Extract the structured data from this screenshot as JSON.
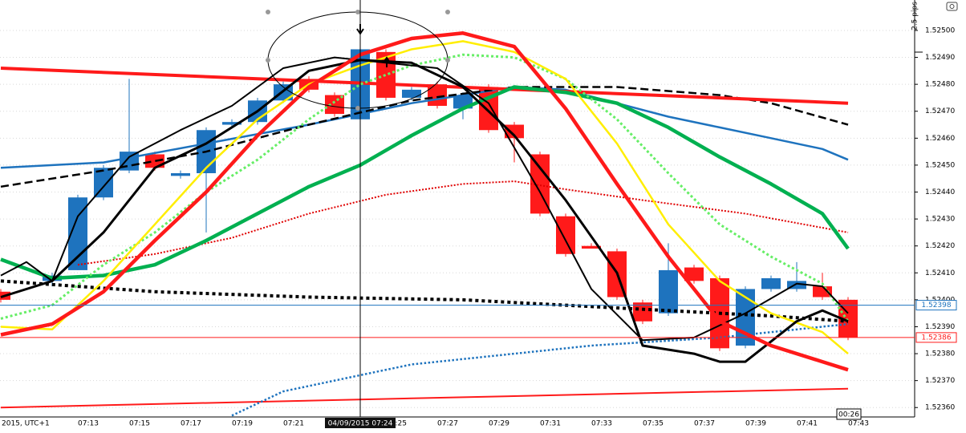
{
  "chart_data": {
    "type": "candlestick",
    "x_start_label": "2015, UTC+1",
    "categories": [
      null,
      null,
      null,
      "07:13",
      null,
      "07:15",
      null,
      "07:17",
      null,
      "07:19",
      null,
      "07:21",
      null,
      null,
      null,
      "07:25",
      null,
      "07:27",
      null,
      "07:29",
      null,
      "07:31",
      null,
      "07:33",
      null,
      "07:35",
      null,
      "07:37",
      null,
      "07:39",
      null,
      "07:41",
      null,
      "07:43"
    ],
    "open": [
      1.52403,
      null,
      1.52407,
      1.52411,
      1.52438,
      1.52448,
      1.52454,
      1.52446,
      1.52447,
      1.52465,
      1.52466,
      1.52474,
      1.52482,
      1.52476,
      1.52467,
      1.52492,
      1.52475,
      1.5248,
      1.52471,
      1.52479,
      1.52465,
      1.52454,
      1.52431,
      1.5242,
      1.52418,
      1.52399,
      1.52395,
      1.52412,
      1.52408,
      1.52383,
      1.52404,
      1.52404,
      1.52405,
      1.524
    ],
    "high": [
      1.52404,
      null,
      1.5241,
      1.52439,
      1.5245,
      1.52482,
      1.52455,
      1.52448,
      1.52464,
      1.52467,
      1.52475,
      1.52481,
      1.52483,
      1.52477,
      1.52494,
      1.52493,
      1.52479,
      1.52481,
      1.52477,
      1.5248,
      1.52466,
      1.52455,
      1.52432,
      1.52421,
      1.52419,
      1.524,
      1.52421,
      1.52413,
      1.52409,
      1.52405,
      1.52409,
      1.52414,
      1.5241,
      1.52401
    ],
    "low": [
      1.52399,
      null,
      1.52405,
      1.52411,
      1.52437,
      1.52447,
      1.52448,
      1.52445,
      1.52425,
      1.52464,
      1.52465,
      1.52473,
      1.52477,
      1.52468,
      1.52466,
      1.52474,
      1.52474,
      1.52471,
      1.52467,
      1.52462,
      1.52451,
      1.52431,
      1.52416,
      1.52419,
      1.524,
      1.52391,
      1.52394,
      1.52406,
      1.52381,
      1.52382,
      1.52403,
      1.52403,
      1.524,
      1.52385
    ],
    "close": [
      1.524,
      null,
      1.52409,
      1.52438,
      1.52449,
      1.52455,
      1.52449,
      1.52447,
      1.52463,
      1.52466,
      1.52474,
      1.5248,
      1.52478,
      1.52469,
      1.52493,
      1.52475,
      1.52478,
      1.52472,
      1.52476,
      1.52463,
      1.5246,
      1.52432,
      1.52417,
      1.52419,
      1.52401,
      1.52392,
      1.52411,
      1.52407,
      1.52382,
      1.52404,
      1.52408,
      1.52407,
      1.52401,
      1.52386
    ],
    "up_color": "#1e73be",
    "down_color": "#ff1a1a",
    "ylim": [
      1.523565,
      1.525113
    ],
    "yticks": [
      {
        "value": 1.525,
        "label": "1.52500"
      },
      {
        "value": 1.5249,
        "label": "1.52490"
      },
      {
        "value": 1.5248,
        "label": "1.52480"
      },
      {
        "value": 1.5247,
        "label": "1.52470"
      },
      {
        "value": 1.5246,
        "label": "1.52460"
      },
      {
        "value": 1.5245,
        "label": "1.52450"
      },
      {
        "value": 1.5244,
        "label": "1.52440"
      },
      {
        "value": 1.5243,
        "label": "1.52430"
      },
      {
        "value": 1.5242,
        "label": "1.52420"
      },
      {
        "value": 1.5241,
        "label": "1.52410"
      },
      {
        "value": 1.524,
        "label": "1.52400"
      },
      {
        "value": 1.5239,
        "label": "1.52390"
      },
      {
        "value": 1.5238,
        "label": "1.52380"
      },
      {
        "value": 1.5237,
        "label": "1.52370"
      },
      {
        "value": 1.5236,
        "label": "1.52360"
      }
    ],
    "grid": true,
    "overlays": [
      {
        "color": "#ff1a1a",
        "width": 2,
        "dash": "solid",
        "x": [
          0,
          33
        ],
        "values": [
          1.5236,
          1.52367
        ]
      },
      {
        "color": "#1e73be",
        "width": 2.5,
        "dash": "dotted",
        "x": [
          9,
          11,
          14,
          16,
          20,
          23,
          28,
          33
        ],
        "values": [
          1.52357,
          1.52366,
          1.52372,
          1.52376,
          1.5238,
          1.52383,
          1.52386,
          1.52391
        ]
      },
      {
        "color": "#000000",
        "width": 4,
        "dash": "dotted",
        "x": [
          0,
          6,
          12,
          18,
          24,
          30,
          33
        ],
        "values": [
          1.52407,
          1.52403,
          1.52401,
          1.524,
          1.52397,
          1.52394,
          1.52392
        ]
      },
      {
        "color": "#e00000",
        "width": 2,
        "dash": "dotted",
        "x": [
          3,
          6,
          9,
          12,
          15,
          18,
          20,
          22,
          25,
          29,
          33
        ],
        "values": [
          1.52413,
          1.52417,
          1.52423,
          1.52432,
          1.52439,
          1.52443,
          1.52444,
          1.52441,
          1.52437,
          1.52432,
          1.52425
        ]
      },
      {
        "color": "#1e73be",
        "width": 2.5,
        "dash": "solid",
        "x": [
          0,
          4,
          8,
          12,
          16,
          20,
          22,
          24,
          26,
          28,
          30,
          32,
          33
        ],
        "values": [
          1.52449,
          1.52451,
          1.52458,
          1.52465,
          1.52473,
          1.52479,
          1.52478,
          1.52473,
          1.52468,
          1.52464,
          1.5246,
          1.52456,
          1.52452
        ]
      },
      {
        "color": "#000000",
        "width": 2.5,
        "dash": "dashed",
        "x": [
          0,
          4,
          8,
          12,
          16,
          20,
          24,
          28,
          30,
          33
        ],
        "values": [
          1.52442,
          1.52448,
          1.52455,
          1.52465,
          1.52474,
          1.52479,
          1.52479,
          1.52476,
          1.52473,
          1.52465
        ]
      },
      {
        "color": "#ff1a1a",
        "width": 4,
        "dash": "solid",
        "x": [
          0,
          33
        ],
        "values": [
          1.52486,
          1.52473
        ]
      },
      {
        "color": "#00b050",
        "width": 4.5,
        "dash": "solid",
        "x": [
          0,
          2,
          4,
          6,
          8,
          10,
          12,
          14,
          16,
          18,
          20,
          22,
          24,
          26,
          28,
          30,
          32,
          33
        ],
        "values": [
          1.52415,
          1.52408,
          1.52409,
          1.52413,
          1.52422,
          1.52432,
          1.52442,
          1.5245,
          1.52461,
          1.52471,
          1.52479,
          1.52477,
          1.52473,
          1.52464,
          1.52453,
          1.52443,
          1.52432,
          1.52419
        ]
      },
      {
        "color": "#66ee66",
        "width": 3,
        "dash": "dotted",
        "x": [
          0,
          2,
          4,
          6,
          8,
          10,
          12,
          14,
          16,
          18,
          20,
          22,
          24,
          26,
          28,
          30,
          32,
          33
        ],
        "values": [
          1.52393,
          1.52398,
          1.52413,
          1.52425,
          1.5244,
          1.52452,
          1.52467,
          1.5248,
          1.52487,
          1.52491,
          1.5249,
          1.52482,
          1.52467,
          1.52447,
          1.52428,
          1.52416,
          1.52406,
          1.52392
        ]
      },
      {
        "color": "#ffee00",
        "width": 2.5,
        "dash": "solid",
        "x": [
          0,
          2,
          4,
          6,
          8,
          10,
          12,
          14,
          16,
          18,
          20,
          22,
          24,
          26,
          28,
          30,
          32,
          33
        ],
        "values": [
          1.5239,
          1.52389,
          1.52407,
          1.52428,
          1.52449,
          1.52467,
          1.5248,
          1.52487,
          1.52493,
          1.52496,
          1.52492,
          1.52482,
          1.52458,
          1.52428,
          1.52407,
          1.52395,
          1.52388,
          1.5238
        ]
      },
      {
        "color": "#000000",
        "width": 3,
        "dash": "solid",
        "x": [
          0,
          2,
          4,
          6,
          8,
          10,
          12,
          14,
          16,
          18,
          20,
          22,
          24,
          25,
          27,
          28,
          29,
          31,
          32,
          33
        ],
        "values": [
          1.52401,
          1.52407,
          1.52425,
          1.52449,
          1.52458,
          1.5247,
          1.52485,
          1.52489,
          1.52488,
          1.52479,
          1.52461,
          1.52437,
          1.5241,
          1.52383,
          1.5238,
          1.52377,
          1.52377,
          1.52392,
          1.52396,
          1.52392
        ]
      },
      {
        "color": "#000000",
        "width": 2,
        "dash": "solid",
        "x": [
          0,
          1,
          2,
          3,
          5,
          7,
          9,
          11,
          13,
          15,
          17,
          19,
          21,
          23,
          25,
          27,
          29,
          31,
          32,
          33
        ],
        "values": [
          1.52409,
          1.52414,
          1.52407,
          1.52431,
          1.52453,
          1.52463,
          1.52472,
          1.52486,
          1.5249,
          1.52488,
          1.52486,
          1.52473,
          1.5244,
          1.52404,
          1.52385,
          1.52386,
          1.52395,
          1.52406,
          1.52405,
          1.52395
        ]
      },
      {
        "color": "#ff1a1a",
        "width": 4.5,
        "dash": "solid",
        "x": [
          0,
          2,
          4,
          6,
          8,
          10,
          12,
          14,
          16,
          18,
          20,
          22,
          24,
          26,
          28,
          30,
          32,
          33
        ],
        "values": [
          1.52387,
          1.52391,
          1.52403,
          1.52422,
          1.5244,
          1.52461,
          1.52479,
          1.52491,
          1.52497,
          1.52499,
          1.52494,
          1.52471,
          1.52443,
          1.52416,
          1.52392,
          1.52383,
          1.52377,
          1.52374
        ]
      }
    ],
    "price_lines": [
      {
        "value": 1.52398,
        "label": "1.52398",
        "color": "#1e73be"
      },
      {
        "value": 1.52386,
        "label": "1.52386",
        "color": "#ff1a1a"
      }
    ],
    "crosshair": {
      "index": 14,
      "label": "04/09/2015 07:24"
    },
    "countdown": "00:26",
    "scale_label": "2.5 pips"
  }
}
